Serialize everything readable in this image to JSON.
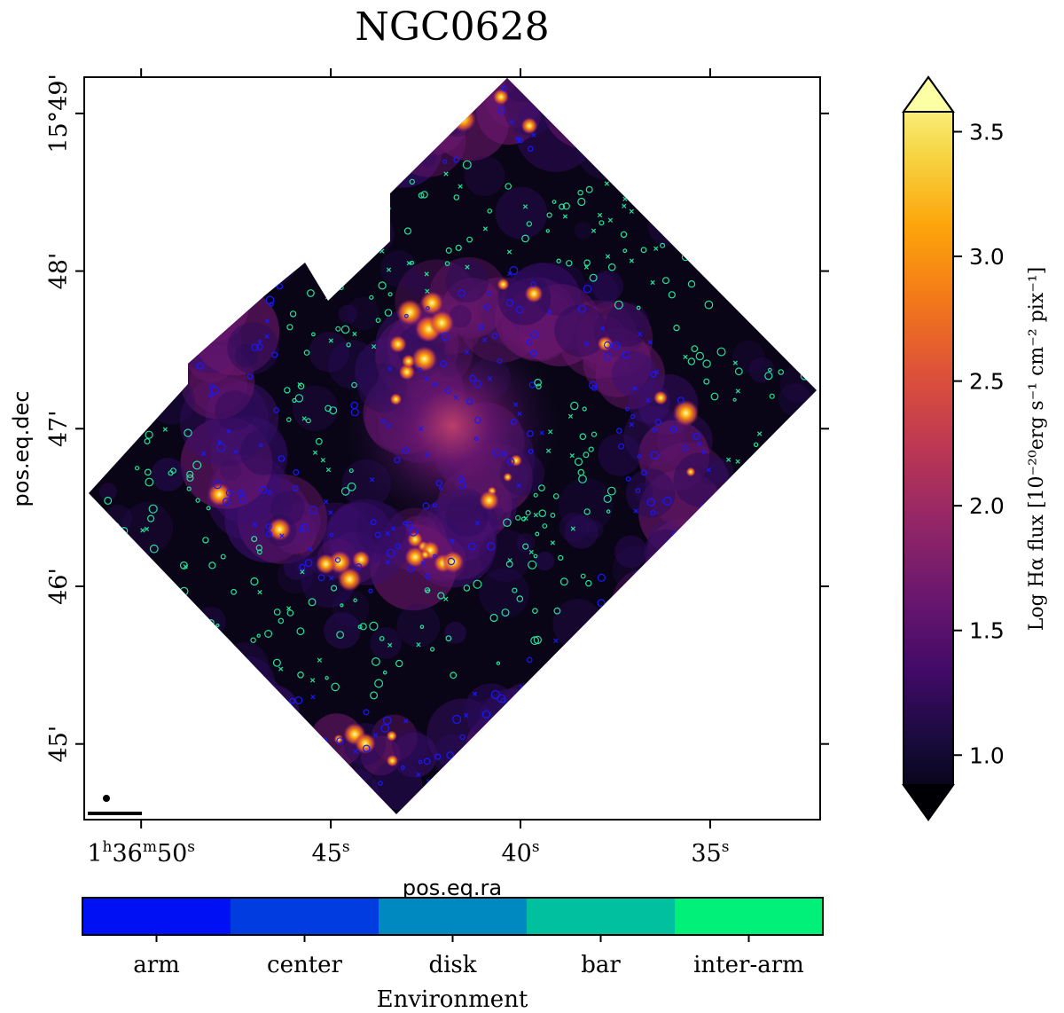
{
  "chart_data": {
    "type": "heatmap",
    "title": "NGC0628",
    "xlabel": "pos.eq.ra",
    "ylabel": "pos.eq.dec",
    "x_ticks": [
      {
        "label": "1h36m50s",
        "h": "1",
        "m": "36",
        "s": "50",
        "value_s": 50
      },
      {
        "label": "45s",
        "s": "45",
        "value_s": 45
      },
      {
        "label": "40s",
        "s": "40",
        "value_s": 40
      },
      {
        "label": "35s",
        "s": "35",
        "value_s": 35
      }
    ],
    "y_ticks": [
      {
        "label": "15°49'",
        "value_arcmin": 49
      },
      {
        "label": "48'",
        "value_arcmin": 48
      },
      {
        "label": "47'",
        "value_arcmin": 47
      },
      {
        "label": "46'",
        "value_arcmin": 46
      },
      {
        "label": "45'",
        "value_arcmin": 45
      }
    ],
    "xlim_s": [
      51.5,
      32.1
    ],
    "ylim_arcmin": [
      44.52,
      49.23
    ],
    "colorbar": {
      "label": "Log Hα flux [10⁻²⁰erg s⁻¹ cm⁻² pix⁻¹]",
      "ticks": [
        "1.0",
        "1.5",
        "2.0",
        "2.5",
        "3.0",
        "3.5"
      ],
      "tick_values": [
        1.0,
        1.5,
        2.0,
        2.5,
        3.0,
        3.5
      ],
      "range": [
        0.88,
        3.58
      ],
      "colormap": "inferno",
      "extend": "both"
    },
    "environment_bar": {
      "label": "Environment",
      "categories": [
        "arm",
        "center",
        "disk",
        "bar",
        "inter-arm"
      ],
      "colors": [
        "#0010f5",
        "#003ce0",
        "#0088c0",
        "#00c0a0",
        "#00f07a"
      ]
    },
    "markers": {
      "arm_color": "#1818ff",
      "interarm_color": "#22e39a"
    }
  }
}
